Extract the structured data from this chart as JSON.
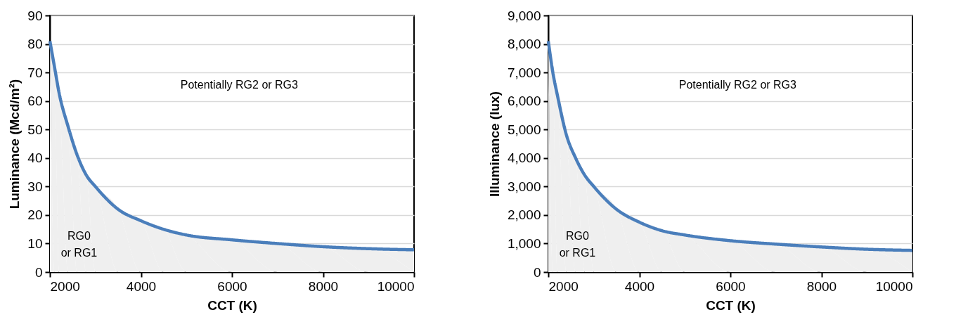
{
  "chart_data": [
    {
      "type": "area",
      "xlabel": "CCT (K)",
      "ylabel": "Luminance (Mcd/m²)",
      "x": [
        2000,
        2100,
        2200,
        2400,
        2600,
        2800,
        3000,
        3500,
        4000,
        4500,
        5000,
        6000,
        7000,
        8000,
        9000,
        10000
      ],
      "series": [
        {
          "color": "#4a7ebb",
          "values": [
            81,
            72,
            63,
            51,
            41,
            34,
            30,
            22,
            18,
            15,
            13,
            11.3,
            10,
            8.9,
            8.2,
            7.8
          ]
        }
      ],
      "xlim": [
        2000,
        10000
      ],
      "xticks": [
        2000,
        4000,
        6000,
        8000,
        10000
      ],
      "ylim": [
        0,
        90
      ],
      "yticks": [
        0,
        10,
        20,
        30,
        40,
        50,
        60,
        70,
        80,
        90
      ],
      "grid": "y",
      "annotations": [
        "Potentially RG2 or RG3",
        "RG0\nor RG1"
      ]
    },
    {
      "type": "area",
      "xlabel": "CCT (K)",
      "ylabel": "Illuminance (lux)",
      "x": [
        2000,
        2100,
        2200,
        2400,
        2600,
        2800,
        3000,
        3500,
        4000,
        4500,
        5000,
        6000,
        7000,
        8000,
        9000,
        10000
      ],
      "series": [
        {
          "color": "#4a7ebb",
          "values": [
            8100,
            7000,
            6200,
            4800,
            4000,
            3400,
            3000,
            2200,
            1750,
            1450,
            1300,
            1100,
            980,
            880,
            800,
            760
          ]
        }
      ],
      "xlim": [
        2000,
        10000
      ],
      "xticks": [
        2000,
        4000,
        6000,
        8000,
        10000
      ],
      "ylim": [
        0,
        9000
      ],
      "yticks": [
        0,
        {
          "value": 1000,
          "label": "1,000"
        },
        {
          "value": 2000,
          "label": "2,000"
        },
        {
          "value": 3000,
          "label": "3,000"
        },
        {
          "value": 4000,
          "label": "4,000"
        },
        {
          "value": 5000,
          "label": "5,000"
        },
        {
          "value": 6000,
          "label": "6,000"
        },
        {
          "value": 7000,
          "label": "7,000"
        },
        {
          "value": 8000,
          "label": "8,000"
        },
        {
          "value": 9000,
          "label": "9,000"
        }
      ],
      "grid": "y",
      "annotations": [
        "Potentially RG2 or RG3",
        "RG0\nor RG1"
      ]
    }
  ]
}
